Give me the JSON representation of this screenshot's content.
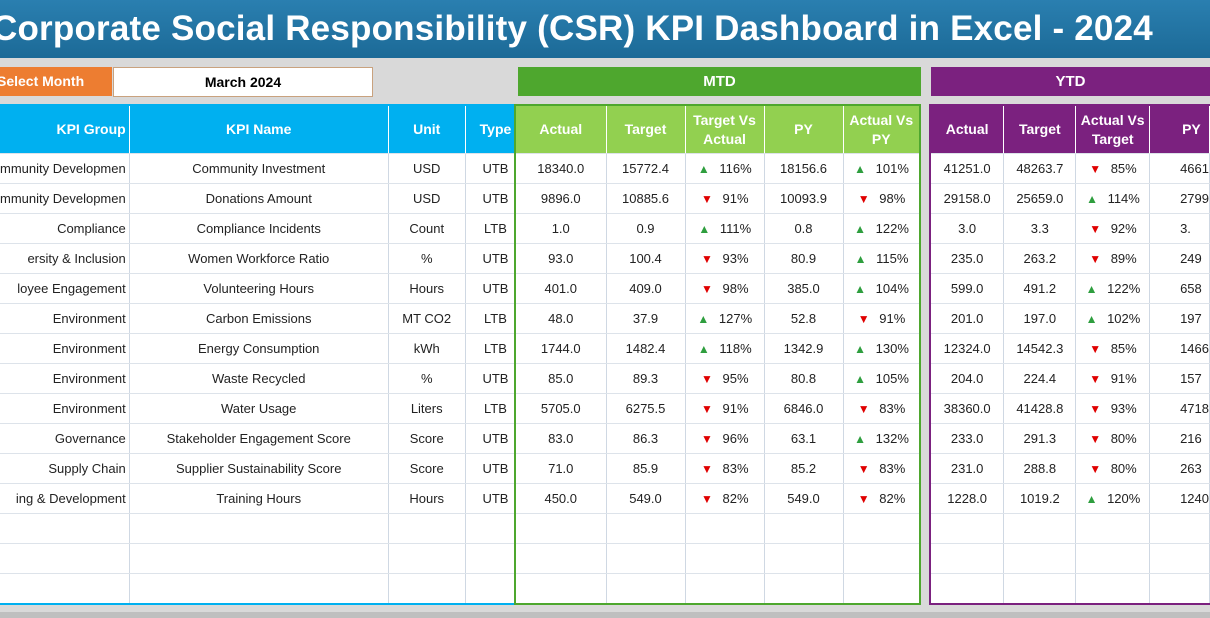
{
  "title": "Corporate Social Responsibility (CSR) KPI Dashboard in Excel - 2024",
  "month_selector": {
    "label": "Select Month",
    "value": "March 2024"
  },
  "sections": {
    "mtd": "MTD",
    "ytd": "YTD"
  },
  "left_headers": [
    "KPI Group",
    "KPI Name",
    "Unit",
    "Type"
  ],
  "mtd_headers": [
    "Actual",
    "Target",
    "Target Vs Actual",
    "PY",
    "Actual Vs PY"
  ],
  "ytd_headers": [
    "Actual",
    "Target",
    "Actual Vs Target",
    "PY"
  ],
  "colors": {
    "banner": "#1c6a97",
    "select": "#ed7d31",
    "kpi_header": "#00b0f0",
    "mtd": "#4ea72e",
    "mtd_header": "#92d050",
    "ytd": "#7b217f",
    "up": "#2e9e3e",
    "down": "#e00000"
  },
  "icons": {
    "up": "triangle-up-icon",
    "down": "triangle-down-icon"
  },
  "rows": [
    {
      "group": "mmunity Developmen",
      "name": "Community Investment",
      "unit": "USD",
      "type": "UTB",
      "mtd": {
        "actual": "18340.0",
        "target": "15772.4",
        "tva_dir": "up",
        "tva": "116%",
        "py": "18156.6",
        "avp_dir": "up",
        "avp": "101%"
      },
      "ytd": {
        "actual": "41251.0",
        "target": "48263.7",
        "avt_dir": "down",
        "avt": "85%",
        "py": "4661"
      }
    },
    {
      "group": "mmunity Developmen",
      "name": "Donations Amount",
      "unit": "USD",
      "type": "UTB",
      "mtd": {
        "actual": "9896.0",
        "target": "10885.6",
        "tva_dir": "down",
        "tva": "91%",
        "py": "10093.9",
        "avp_dir": "down",
        "avp": "98%"
      },
      "ytd": {
        "actual": "29158.0",
        "target": "25659.0",
        "avt_dir": "up",
        "avt": "114%",
        "py": "2799"
      }
    },
    {
      "group": "Compliance",
      "name": "Compliance Incidents",
      "unit": "Count",
      "type": "LTB",
      "mtd": {
        "actual": "1.0",
        "target": "0.9",
        "tva_dir": "up",
        "tva": "111%",
        "py": "0.8",
        "avp_dir": "up",
        "avp": "122%"
      },
      "ytd": {
        "actual": "3.0",
        "target": "3.3",
        "avt_dir": "down",
        "avt": "92%",
        "py": "3."
      }
    },
    {
      "group": "ersity & Inclusion",
      "name": "Women Workforce Ratio",
      "unit": "%",
      "type": "UTB",
      "mtd": {
        "actual": "93.0",
        "target": "100.4",
        "tva_dir": "down",
        "tva": "93%",
        "py": "80.9",
        "avp_dir": "up",
        "avp": "115%"
      },
      "ytd": {
        "actual": "235.0",
        "target": "263.2",
        "avt_dir": "down",
        "avt": "89%",
        "py": "249"
      }
    },
    {
      "group": "loyee Engagement",
      "name": "Volunteering Hours",
      "unit": "Hours",
      "type": "UTB",
      "mtd": {
        "actual": "401.0",
        "target": "409.0",
        "tva_dir": "down",
        "tva": "98%",
        "py": "385.0",
        "avp_dir": "up",
        "avp": "104%"
      },
      "ytd": {
        "actual": "599.0",
        "target": "491.2",
        "avt_dir": "up",
        "avt": "122%",
        "py": "658"
      }
    },
    {
      "group": "Environment",
      "name": "Carbon Emissions",
      "unit": "MT CO2",
      "type": "LTB",
      "mtd": {
        "actual": "48.0",
        "target": "37.9",
        "tva_dir": "up",
        "tva": "127%",
        "py": "52.8",
        "avp_dir": "down",
        "avp": "91%"
      },
      "ytd": {
        "actual": "201.0",
        "target": "197.0",
        "avt_dir": "up",
        "avt": "102%",
        "py": "197"
      }
    },
    {
      "group": "Environment",
      "name": "Energy Consumption",
      "unit": "kWh",
      "type": "LTB",
      "mtd": {
        "actual": "1744.0",
        "target": "1482.4",
        "tva_dir": "up",
        "tva": "118%",
        "py": "1342.9",
        "avp_dir": "up",
        "avp": "130%"
      },
      "ytd": {
        "actual": "12324.0",
        "target": "14542.3",
        "avt_dir": "down",
        "avt": "85%",
        "py": "1466"
      }
    },
    {
      "group": "Environment",
      "name": "Waste Recycled",
      "unit": "%",
      "type": "UTB",
      "mtd": {
        "actual": "85.0",
        "target": "89.3",
        "tva_dir": "down",
        "tva": "95%",
        "py": "80.8",
        "avp_dir": "up",
        "avp": "105%"
      },
      "ytd": {
        "actual": "204.0",
        "target": "224.4",
        "avt_dir": "down",
        "avt": "91%",
        "py": "157"
      }
    },
    {
      "group": "Environment",
      "name": "Water Usage",
      "unit": "Liters",
      "type": "LTB",
      "mtd": {
        "actual": "5705.0",
        "target": "6275.5",
        "tva_dir": "down",
        "tva": "91%",
        "py": "6846.0",
        "avp_dir": "down",
        "avp": "83%"
      },
      "ytd": {
        "actual": "38360.0",
        "target": "41428.8",
        "avt_dir": "down",
        "avt": "93%",
        "py": "4718"
      }
    },
    {
      "group": "Governance",
      "name": "Stakeholder Engagement Score",
      "unit": "Score",
      "type": "UTB",
      "mtd": {
        "actual": "83.0",
        "target": "86.3",
        "tva_dir": "down",
        "tva": "96%",
        "py": "63.1",
        "avp_dir": "up",
        "avp": "132%"
      },
      "ytd": {
        "actual": "233.0",
        "target": "291.3",
        "avt_dir": "down",
        "avt": "80%",
        "py": "216"
      }
    },
    {
      "group": "Supply Chain",
      "name": "Supplier Sustainability Score",
      "unit": "Score",
      "type": "UTB",
      "mtd": {
        "actual": "71.0",
        "target": "85.9",
        "tva_dir": "down",
        "tva": "83%",
        "py": "85.2",
        "avp_dir": "down",
        "avp": "83%"
      },
      "ytd": {
        "actual": "231.0",
        "target": "288.8",
        "avt_dir": "down",
        "avt": "80%",
        "py": "263"
      }
    },
    {
      "group": "ing & Development",
      "name": "Training Hours",
      "unit": "Hours",
      "type": "UTB",
      "mtd": {
        "actual": "450.0",
        "target": "549.0",
        "tva_dir": "down",
        "tva": "82%",
        "py": "549.0",
        "avp_dir": "down",
        "avp": "82%"
      },
      "ytd": {
        "actual": "1228.0",
        "target": "1019.2",
        "avt_dir": "up",
        "avt": "120%",
        "py": "1240"
      }
    }
  ]
}
